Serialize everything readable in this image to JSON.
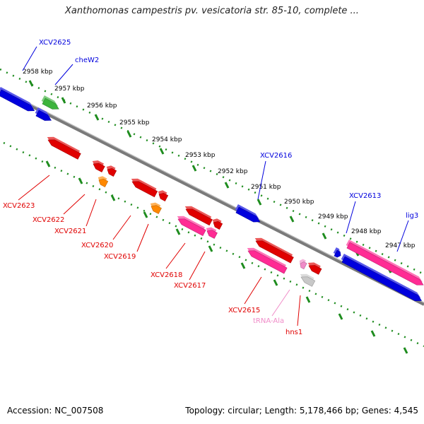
{
  "title": "Xanthomonas campestris pv. vesicatoria str. 85-10, complete ...",
  "footer": {
    "accession_label": "Accession:",
    "accession": "NC_007508",
    "topology_label": "Topology:",
    "topology": "circular;",
    "length_label": "Length:",
    "length": "5,178,466 bp;",
    "genes_label": "Genes:",
    "genes": "4,545"
  },
  "colors": {
    "track": "#7a7a7a",
    "ruler": "#1e8c1e",
    "gene_plus": "#0000dd",
    "gene_minus": "#e00000",
    "pseudo_orange": "#ff8800",
    "pink": "#ff2b94",
    "green": "#3cb43c",
    "trna": "#f08cc8",
    "grey": "#c8c8c8"
  },
  "ruler_ticks": [
    {
      "label": "2958 kbp"
    },
    {
      "label": "2957 kbp"
    },
    {
      "label": "2956 kbp"
    },
    {
      "label": "2955 kbp"
    },
    {
      "label": "2954 kbp"
    },
    {
      "label": "2953 kbp"
    },
    {
      "label": "2952 kbp"
    },
    {
      "label": "2951 kbp"
    },
    {
      "label": "2950 kbp"
    },
    {
      "label": "2949 kbp"
    },
    {
      "label": "2948 kbp"
    },
    {
      "label": "2947 kbp"
    }
  ],
  "gene_labels": [
    {
      "name": "XCV2625",
      "strand": "plus"
    },
    {
      "name": "cheW2",
      "strand": "plus"
    },
    {
      "name": "XCV2616",
      "strand": "plus"
    },
    {
      "name": "XCV2613",
      "strand": "plus"
    },
    {
      "name": "lig3",
      "strand": "plus"
    },
    {
      "name": "XCV2623",
      "strand": "minus"
    },
    {
      "name": "XCV2622",
      "strand": "minus"
    },
    {
      "name": "XCV2621",
      "strand": "minus"
    },
    {
      "name": "XCV2620",
      "strand": "minus"
    },
    {
      "name": "XCV2619",
      "strand": "minus"
    },
    {
      "name": "XCV2618",
      "strand": "minus"
    },
    {
      "name": "XCV2617",
      "strand": "minus"
    },
    {
      "name": "XCV2615",
      "strand": "minus"
    },
    {
      "name": "tRNA-Ala",
      "strand": "trna"
    },
    {
      "name": "hns1",
      "strand": "minus"
    }
  ]
}
